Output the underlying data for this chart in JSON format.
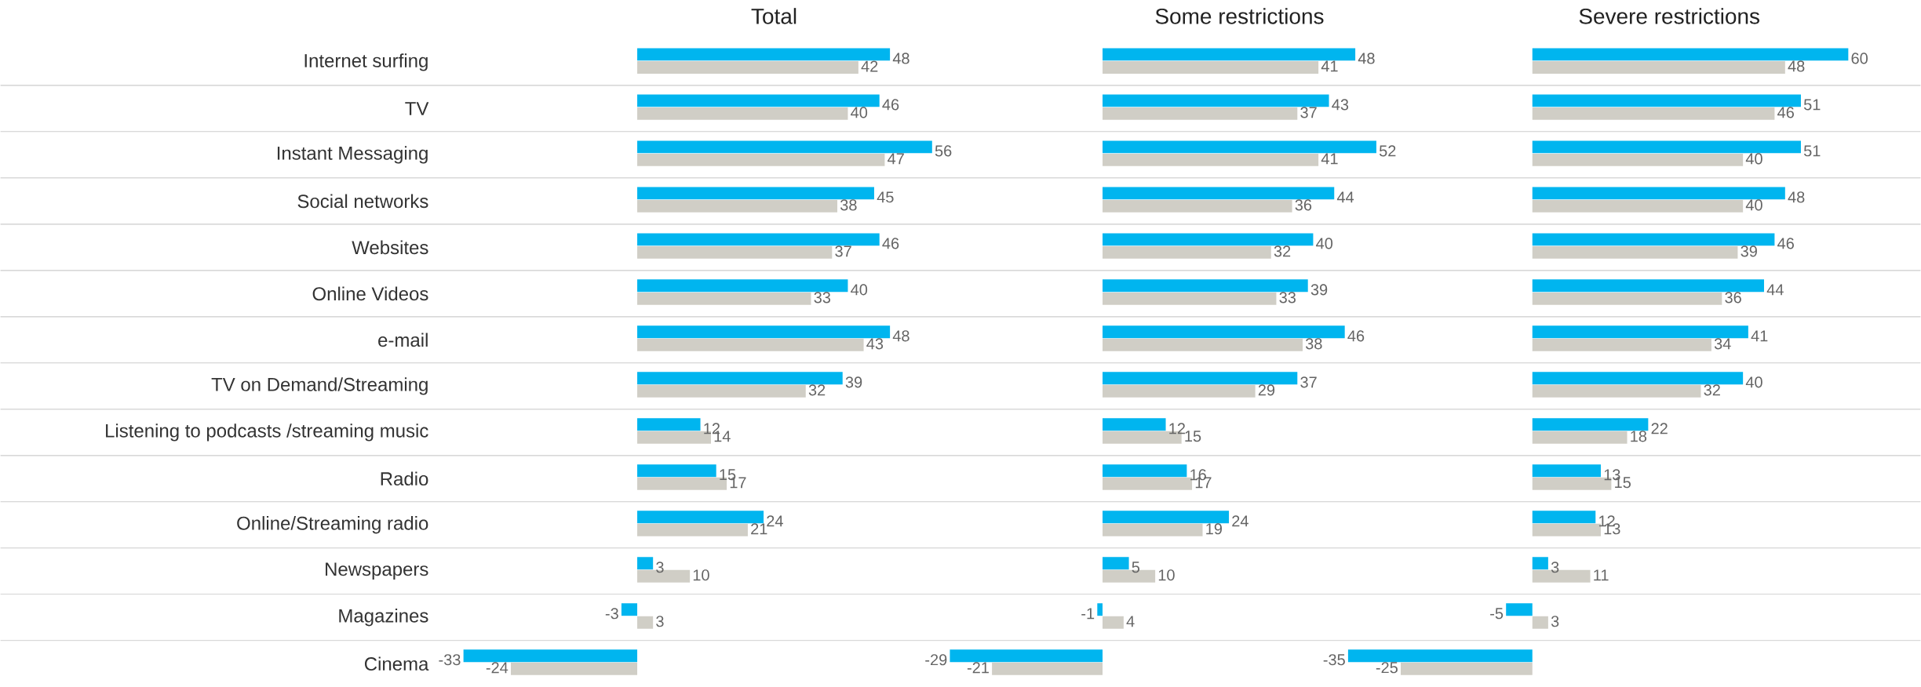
{
  "chart_data": [
    {
      "type": "bar",
      "orientation": "horizontal",
      "title": "Total",
      "tick_labels": "y",
      "data_labels": true,
      "grid": "y",
      "categories": [
        "Internet surfing",
        "TV",
        "Instant Messaging",
        "Social networks",
        "Websites",
        "Online Videos",
        "e-mail",
        "TV on Demand/Streaming",
        "Listening to podcasts /streaming music",
        "Radio",
        "Online/Streaming radio",
        "Newspapers",
        "Magazines",
        "Cinema"
      ],
      "series": [
        {
          "color": "#00b5ef",
          "values": [
            48,
            46,
            56,
            45,
            46,
            40,
            48,
            39,
            12,
            15,
            24,
            3,
            -3,
            -33
          ]
        },
        {
          "color": "#d0cec6",
          "values": [
            42,
            40,
            47,
            38,
            37,
            33,
            43,
            32,
            14,
            17,
            21,
            10,
            3,
            -24
          ]
        }
      ]
    },
    {
      "type": "bar",
      "orientation": "horizontal",
      "title": "Some restrictions",
      "tick_labels": false,
      "data_labels": true,
      "categories": [
        null,
        null,
        null,
        null,
        null,
        null,
        null,
        null,
        null,
        null,
        null,
        null,
        null,
        null
      ],
      "series": [
        {
          "color": "#00b5ef",
          "values": [
            48,
            43,
            52,
            44,
            40,
            39,
            46,
            37,
            12,
            16,
            24,
            5,
            -1,
            -29
          ]
        },
        {
          "color": "#d0cec6",
          "values": [
            41,
            37,
            41,
            36,
            32,
            33,
            38,
            29,
            15,
            17,
            19,
            10,
            4,
            -21
          ]
        }
      ]
    },
    {
      "type": "bar",
      "orientation": "horizontal",
      "title": "Severe restrictions",
      "tick_labels": false,
      "data_labels": true,
      "categories": [
        null,
        null,
        null,
        null,
        null,
        null,
        null,
        null,
        null,
        null,
        null,
        null,
        null,
        null
      ],
      "series": [
        {
          "color": "#00b5ef",
          "values": [
            60,
            51,
            51,
            48,
            46,
            44,
            41,
            40,
            22,
            13,
            12,
            3,
            -5,
            -35
          ]
        },
        {
          "color": "#d0cec6",
          "values": [
            48,
            46,
            40,
            40,
            39,
            36,
            34,
            32,
            18,
            15,
            13,
            11,
            3,
            -25
          ]
        }
      ]
    }
  ]
}
